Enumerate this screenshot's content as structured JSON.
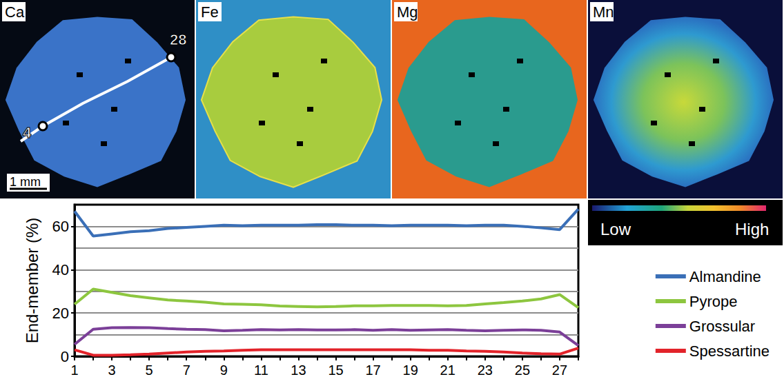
{
  "chart_data": {
    "type": "line",
    "y_label": "End-member (%)",
    "categories": [
      1,
      null,
      3,
      null,
      5,
      null,
      7,
      null,
      9,
      null,
      11,
      null,
      13,
      null,
      15,
      null,
      17,
      null,
      19,
      null,
      21,
      null,
      23,
      null,
      25,
      null,
      27,
      null
    ],
    "series": [
      {
        "name": "Almandine",
        "color": "#3a6fb7",
        "values": [
          67,
          55.5,
          56.5,
          57.5,
          58,
          59,
          59.5,
          60,
          60.5,
          60.3,
          60.5,
          60.5,
          60.5,
          60.8,
          60.8,
          60.5,
          60.5,
          60.3,
          60.5,
          60.5,
          60.5,
          60.3,
          60.5,
          60.5,
          60,
          59.3,
          58.5,
          68
        ]
      },
      {
        "name": "Pyrope",
        "color": "#8dc63f",
        "values": [
          24,
          31,
          29.5,
          28,
          27,
          26,
          25.5,
          25,
          24.2,
          24,
          23.8,
          23.2,
          23,
          22.8,
          23,
          23.3,
          23.3,
          23.5,
          23.5,
          23.5,
          23.3,
          23.5,
          24.2,
          24.8,
          25.5,
          26.5,
          28.5,
          22.5
        ]
      },
      {
        "name": "Grossular",
        "color": "#7b3f98",
        "values": [
          5.5,
          12.5,
          13.2,
          13.3,
          13.2,
          12.8,
          12.5,
          12.3,
          11.8,
          12,
          12.3,
          12.2,
          12.3,
          12.2,
          12.2,
          12.3,
          12,
          12.3,
          12,
          12.2,
          12.3,
          12,
          11.8,
          12,
          12.2,
          12,
          11.2,
          5
        ]
      },
      {
        "name": "Spessartine",
        "color": "#e2232a",
        "values": [
          3,
          0.5,
          0.5,
          0.7,
          1,
          1.5,
          2,
          2.3,
          2.5,
          2.8,
          3,
          3,
          3,
          3,
          3,
          3,
          3,
          3,
          3,
          2.8,
          2.8,
          2.5,
          2.3,
          2,
          1.5,
          1.2,
          1,
          3.8
        ]
      }
    ],
    "ylim": [
      0,
      70
    ],
    "yticks": [
      0,
      20,
      40,
      60
    ],
    "grid": true,
    "legend": "right"
  },
  "maps": {
    "panels": [
      "Ca",
      "Fe",
      "Mg",
      "Mn"
    ],
    "traverse_points": [
      4,
      28
    ],
    "scale_bar": "1 mm",
    "color_scale": {
      "low": "Low",
      "high": "High"
    }
  }
}
